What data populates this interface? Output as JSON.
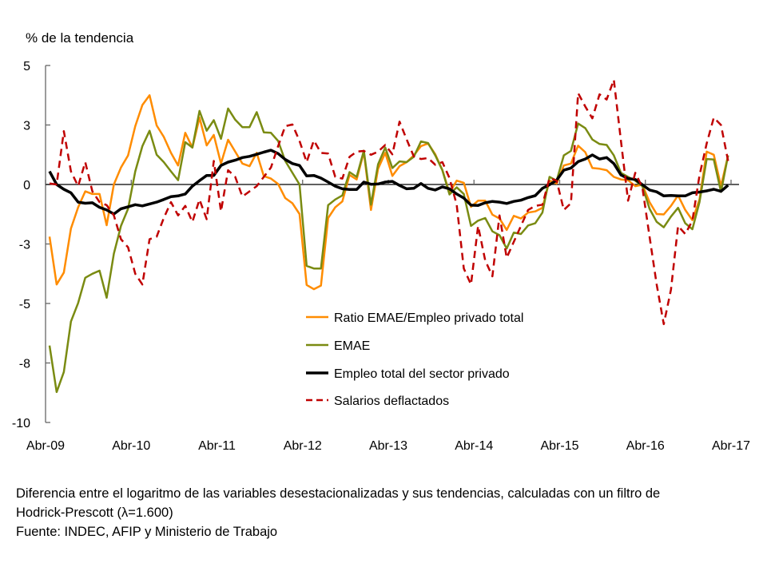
{
  "chart_data": {
    "type": "line",
    "ylabel": "% de la tendencia",
    "ylim": [
      -10,
      5
    ],
    "y_ticks": [
      5,
      2.5,
      0,
      -2.5,
      -5,
      -7.5,
      -10
    ],
    "y_tick_labels": [
      "5",
      "3",
      "0",
      "-3",
      "-5",
      "-8",
      "-10"
    ],
    "x_tick_labels": [
      "Abr-09",
      "Abr-10",
      "Abr-11",
      "Abr-12",
      "Abr-13",
      "Abr-14",
      "Abr-15",
      "Abr-16",
      "Abr-17"
    ],
    "frequency": "monthly",
    "grid": false,
    "legend_position": "center",
    "series": [
      {
        "name": "Ratio EMAE/Empleo privado total",
        "color": "#FF8C00",
        "style": "solid",
        "values": [
          -2.19,
          -4.2,
          -3.7,
          -1.85,
          -0.96,
          -0.29,
          -0.4,
          -0.4,
          -1.71,
          0,
          0.71,
          1.22,
          2.45,
          3.34,
          3.75,
          2.48,
          2.0,
          1.33,
          0.8,
          2.17,
          1.55,
          2.81,
          1.64,
          2.08,
          0.88,
          1.88,
          1.38,
          0.88,
          0.77,
          1.33,
          0.35,
          0.25,
          0.02,
          -0.57,
          -0.79,
          -1.24,
          -4.22,
          -4.4,
          -4.25,
          -1.41,
          -0.96,
          -0.71,
          0.4,
          0.21,
          1.36,
          -1.07,
          0.66,
          1.33,
          0.36,
          0.77,
          0.94,
          1.22,
          1.61,
          1.72,
          1.27,
          0.6,
          -0.35,
          0.16,
          0.07,
          -0.94,
          -0.68,
          -0.68,
          -1.27,
          -1.43,
          -1.91,
          -1.32,
          -1.43,
          -1.18,
          -1.13,
          -0.98,
          0.16,
          0.04,
          0.8,
          0.88,
          1.63,
          1.36,
          0.69,
          0.66,
          0.6,
          0.32,
          0.21,
          0.18,
          -0.07,
          -0.01,
          -0.74,
          -1.24,
          -1.26,
          -0.9,
          -0.46,
          -1.07,
          -1.5,
          -0.63,
          1.38,
          1.25,
          -0.07,
          1.22
        ]
      },
      {
        "name": "EMAE",
        "color": "#7A8B12",
        "style": "solid",
        "values": [
          -6.77,
          -8.72,
          -7.88,
          -5.76,
          -4.98,
          -3.92,
          -3.75,
          -3.62,
          -4.76,
          -2.91,
          -1.74,
          -1.02,
          0.55,
          1.61,
          2.26,
          1.25,
          0.94,
          0.55,
          0.18,
          1.78,
          1.55,
          3.09,
          2.26,
          2.7,
          1.92,
          3.19,
          2.72,
          2.41,
          2.41,
          3.04,
          2.19,
          2.17,
          1.83,
          0.99,
          0.49,
          0,
          -3.42,
          -3.53,
          -3.53,
          -0.87,
          -0.63,
          -0.46,
          0.52,
          0.32,
          1.42,
          -0.85,
          0.85,
          1.55,
          0.69,
          0.97,
          0.94,
          1.16,
          1.81,
          1.74,
          1.22,
          0.6,
          -0.42,
          -0.12,
          -0.4,
          -1.74,
          -1.52,
          -1.41,
          -1.97,
          -2.13,
          -2.69,
          -2.02,
          -2.08,
          -1.72,
          -1.63,
          -1.18,
          0.32,
          0.16,
          1.22,
          1.41,
          2.56,
          2.37,
          1.89,
          1.7,
          1.66,
          1.22,
          0.49,
          0.32,
          0.16,
          -0.07,
          -1.02,
          -1.57,
          -1.8,
          -1.35,
          -0.98,
          -1.63,
          -1.88,
          -0.74,
          1.07,
          1.05,
          -0.31,
          1.22
        ]
      },
      {
        "name": "Empleo total del sector privado",
        "color": "#000000",
        "style": "solid-thick",
        "values": [
          0.55,
          0.0,
          -0.2,
          -0.35,
          -0.74,
          -0.79,
          -0.77,
          -0.96,
          -1.07,
          -1.24,
          -1.02,
          -0.94,
          -0.85,
          -0.9,
          -0.82,
          -0.74,
          -0.63,
          -0.51,
          -0.48,
          -0.4,
          -0.07,
          0.16,
          0.38,
          0.38,
          0.8,
          0.94,
          1.02,
          1.13,
          1.18,
          1.27,
          1.36,
          1.44,
          1.3,
          1.05,
          0.88,
          0.8,
          0.36,
          0.38,
          0.27,
          0.1,
          -0.07,
          -0.18,
          -0.21,
          -0.21,
          0.1,
          0.01,
          0.02,
          0.1,
          0.13,
          -0.04,
          -0.18,
          -0.16,
          0.04,
          -0.16,
          -0.23,
          -0.1,
          -0.18,
          -0.4,
          -0.57,
          -0.87,
          -0.88,
          -0.77,
          -0.71,
          -0.74,
          -0.8,
          -0.71,
          -0.66,
          -0.55,
          -0.47,
          -0.16,
          -0.01,
          0.18,
          0.6,
          0.69,
          0.96,
          1.07,
          1.24,
          1.07,
          1.13,
          0.88,
          0.4,
          0.25,
          0.21,
          -0.01,
          -0.23,
          -0.31,
          -0.48,
          -0.46,
          -0.48,
          -0.48,
          -0.35,
          -0.32,
          -0.27,
          -0.2,
          -0.29,
          -0.03
        ]
      },
      {
        "name": "Salarios deflactados",
        "color": "#C00000",
        "style": "dashed",
        "values": [
          0.04,
          0,
          2.24,
          0.55,
          -0.07,
          0.94,
          -0.29,
          -0.74,
          -0.87,
          -1.3,
          -2.3,
          -2.64,
          -3.75,
          -4.2,
          -2.3,
          -2.19,
          -1.41,
          -0.74,
          -1.3,
          -0.9,
          -1.57,
          -0.63,
          -1.46,
          0.99,
          -1.13,
          0.6,
          0.32,
          -0.51,
          -0.29,
          -0.07,
          0.32,
          0.71,
          1.61,
          2.45,
          2.52,
          1.83,
          0.94,
          1.85,
          1.33,
          1.3,
          0.32,
          0.25,
          1.16,
          1.38,
          1.41,
          1.25,
          1.38,
          1.66,
          1.27,
          2.64,
          1.89,
          1.18,
          1.07,
          1.11,
          0.83,
          0.94,
          0.27,
          -0.85,
          -3.53,
          -4.2,
          -1.74,
          -3.19,
          -3.86,
          -1.3,
          -3.08,
          -2.41,
          -1.74,
          -1.07,
          -0.9,
          -0.85,
          0.27,
          0.16,
          -1.07,
          -0.79,
          3.84,
          3.28,
          2.78,
          3.79,
          3.57,
          4.4,
          1.83,
          -0.68,
          0.49,
          -0.12,
          -2.19,
          -4.2,
          -5.87,
          -4.42,
          -1.74,
          -2.08,
          -1.52,
          0.38,
          1.72,
          2.81,
          2.5,
          0.99
        ]
      }
    ]
  },
  "footnote": {
    "line1": "Diferencia entre el logaritmo de las variables desestacionalizadas y sus tendencias, calculadas con un filtro de",
    "line2": "Hodrick-Prescott (λ=1.600)",
    "source": "Fuente: INDEC, AFIP y Ministerio de Trabajo"
  }
}
